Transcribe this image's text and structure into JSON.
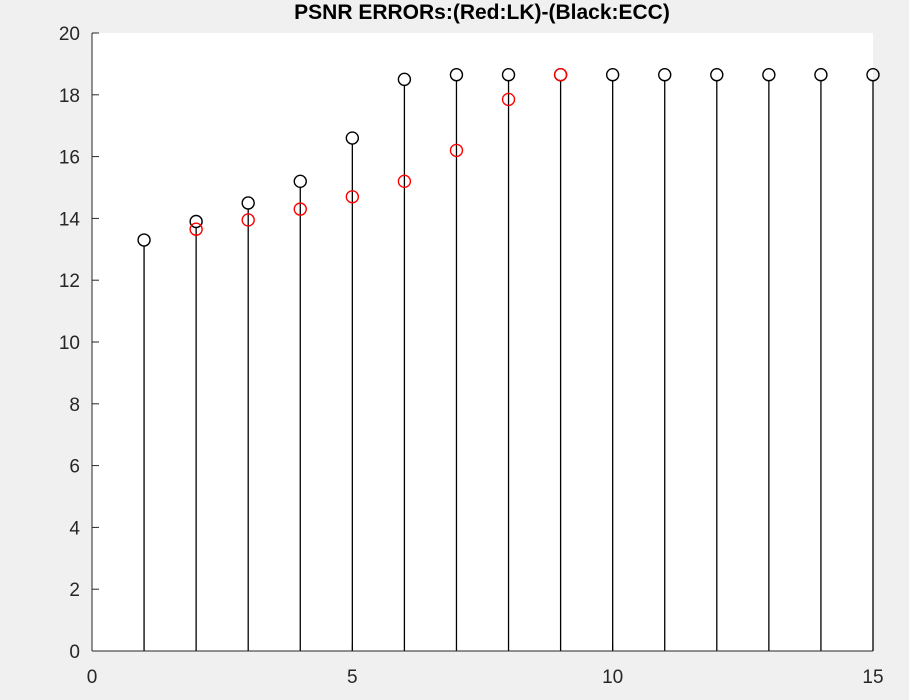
{
  "chart_data": {
    "type": "scatter",
    "title": "PSNR ERRORs:(Red:LK)-(Black:ECC)",
    "xlabel": "",
    "ylabel": "",
    "xlim": [
      0,
      15
    ],
    "ylim": [
      0,
      20
    ],
    "x_ticks": [
      "0",
      "5",
      "10",
      "15"
    ],
    "y_ticks": [
      "0",
      "2",
      "4",
      "6",
      "8",
      "10",
      "12",
      "14",
      "16",
      "18",
      "20"
    ],
    "grid": false,
    "legend": "none",
    "stem": true,
    "series": [
      {
        "color": "#000000",
        "marker": "open-circle",
        "stem": true,
        "x": [
          1,
          2,
          3,
          4,
          5,
          6,
          7,
          8,
          9,
          10,
          11,
          12,
          13,
          14,
          15
        ],
        "y": [
          13.3,
          13.9,
          14.5,
          15.2,
          16.6,
          18.5,
          18.65,
          18.65,
          18.65,
          18.65,
          18.65,
          18.65,
          18.65,
          18.65,
          18.65
        ]
      },
      {
        "color": "#ff0000",
        "marker": "open-circle",
        "stem": false,
        "x": [
          2,
          3,
          4,
          5,
          6,
          7,
          8,
          9
        ],
        "y": [
          13.65,
          13.95,
          14.3,
          14.7,
          15.2,
          16.2,
          17.85,
          18.65
        ]
      }
    ],
    "colors": {
      "axis": "#262626",
      "plot_background": "#ffffff",
      "figure_background": "#f0f0f0"
    }
  }
}
